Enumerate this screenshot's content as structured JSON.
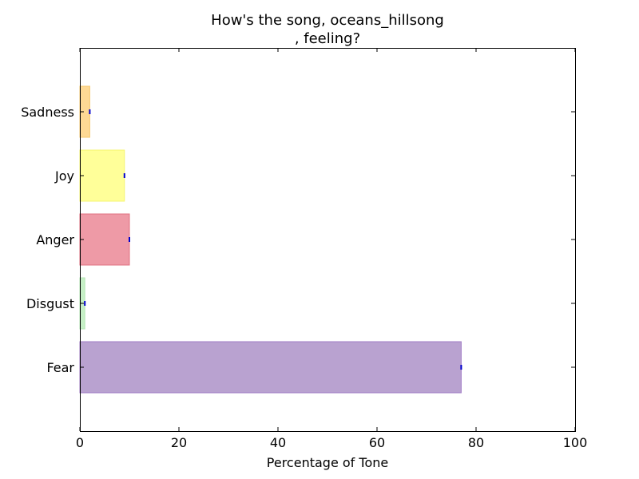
{
  "chart_data": {
    "type": "bar",
    "orientation": "horizontal",
    "title": [
      "How's the song, oceans_hillsong",
      ", feeling?"
    ],
    "xlabel": "Percentage of Tone",
    "ylabel": "",
    "xlim": [
      0,
      100
    ],
    "x_ticks": [
      0,
      20,
      40,
      60,
      80,
      100
    ],
    "grid": false,
    "categories": [
      "Fear",
      "Disgust",
      "Anger",
      "Joy",
      "Sadness"
    ],
    "values": [
      77,
      1,
      10,
      9,
      2
    ],
    "colors": [
      "#b9a2d0",
      "#c6efc6",
      "#ee9aa6",
      "#ffff99",
      "#fed994"
    ],
    "edge_colors": [
      "#a07cc6",
      "#b5e6b5",
      "#e07080",
      "#f5f570",
      "#f5c870"
    ],
    "marker_color": "#0000cc"
  }
}
